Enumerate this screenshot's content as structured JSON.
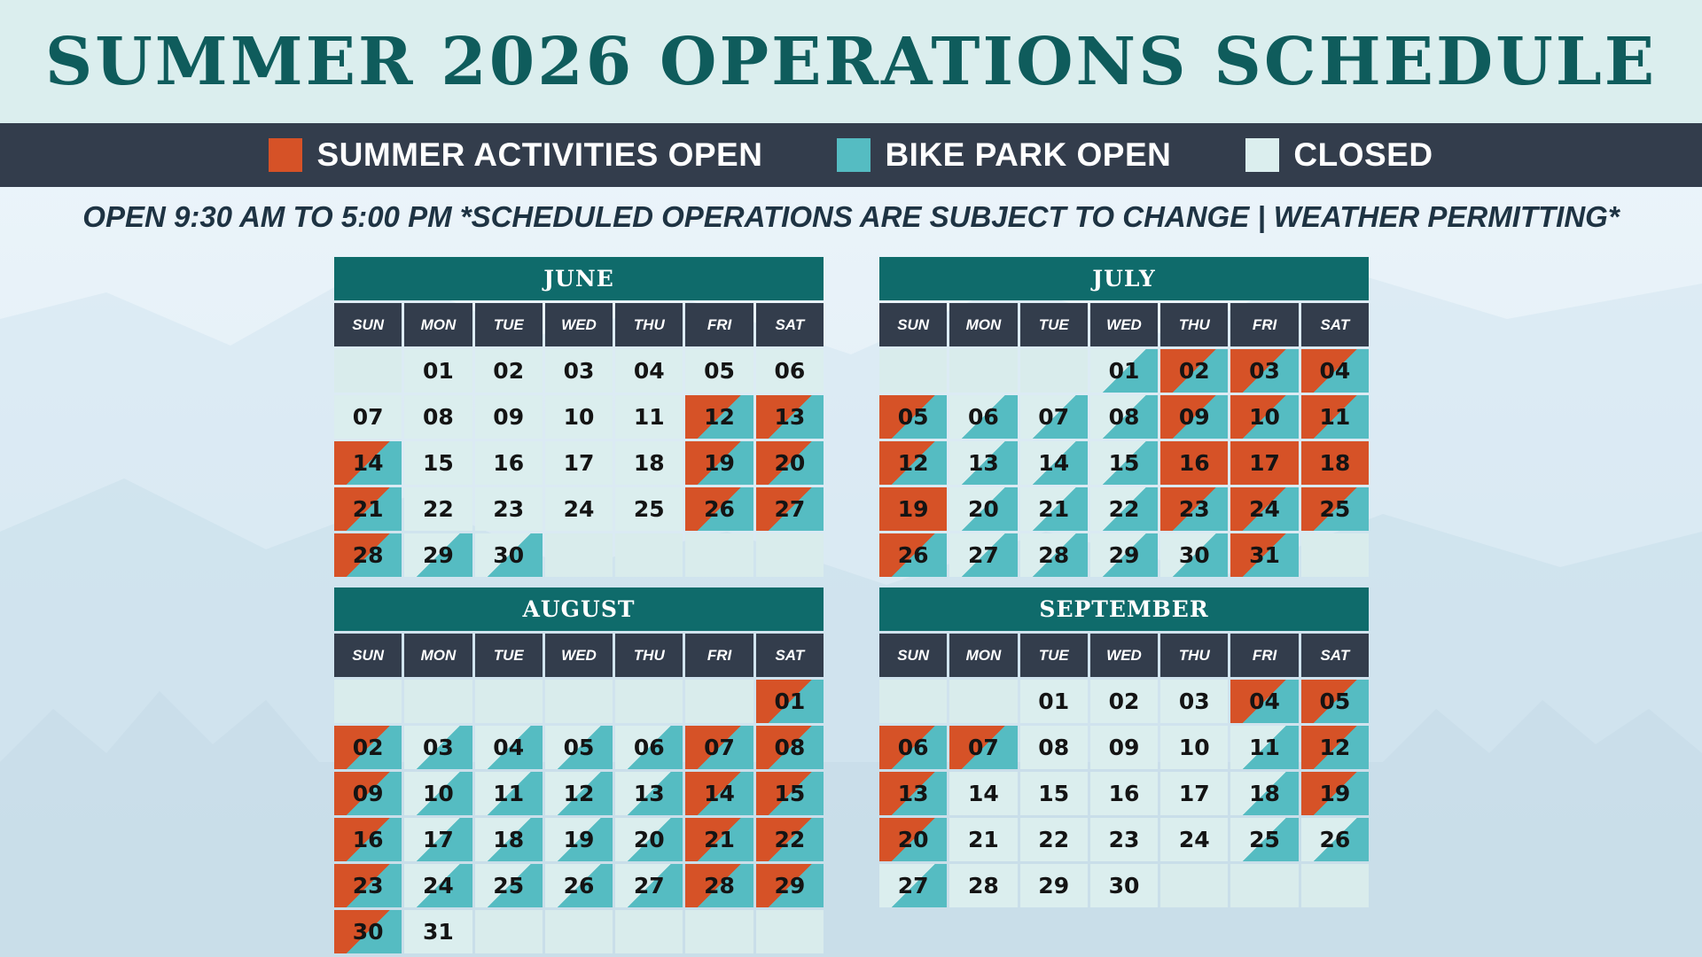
{
  "title": "SUMMER 2026 OPERATIONS SCHEDULE",
  "legend": [
    {
      "label": "SUMMER ACTIVITIES OPEN",
      "color": "#d65227"
    },
    {
      "label": "BIKE PARK OPEN",
      "color": "#55bcc2"
    },
    {
      "label": "CLOSED",
      "color": "#dbeeee"
    }
  ],
  "notice": "OPEN 9:30 AM TO 5:00 PM  *SCHEDULED OPERATIONS ARE SUBJECT TO CHANGE | WEATHER PERMITTING*",
  "weekdays": [
    "SUN",
    "MON",
    "TUE",
    "WED",
    "THU",
    "FRI",
    "SAT"
  ],
  "status_legend": {
    "closed": "closed",
    "bike": "bike park open only",
    "both": "summer activities and bike park open",
    "summer": "summer activities open only"
  },
  "months": [
    {
      "name": "JUNE",
      "start_weekday": 1,
      "days": [
        {
          "day": "01",
          "status": "closed"
        },
        {
          "day": "02",
          "status": "closed"
        },
        {
          "day": "03",
          "status": "closed"
        },
        {
          "day": "04",
          "status": "closed"
        },
        {
          "day": "05",
          "status": "closed"
        },
        {
          "day": "06",
          "status": "closed"
        },
        {
          "day": "07",
          "status": "closed"
        },
        {
          "day": "08",
          "status": "closed"
        },
        {
          "day": "09",
          "status": "closed"
        },
        {
          "day": "10",
          "status": "closed"
        },
        {
          "day": "11",
          "status": "closed"
        },
        {
          "day": "12",
          "status": "both"
        },
        {
          "day": "13",
          "status": "both"
        },
        {
          "day": "14",
          "status": "both"
        },
        {
          "day": "15",
          "status": "closed"
        },
        {
          "day": "16",
          "status": "closed"
        },
        {
          "day": "17",
          "status": "closed"
        },
        {
          "day": "18",
          "status": "closed"
        },
        {
          "day": "19",
          "status": "both"
        },
        {
          "day": "20",
          "status": "both"
        },
        {
          "day": "21",
          "status": "both"
        },
        {
          "day": "22",
          "status": "closed"
        },
        {
          "day": "23",
          "status": "closed"
        },
        {
          "day": "24",
          "status": "closed"
        },
        {
          "day": "25",
          "status": "closed"
        },
        {
          "day": "26",
          "status": "both"
        },
        {
          "day": "27",
          "status": "both"
        },
        {
          "day": "28",
          "status": "both"
        },
        {
          "day": "29",
          "status": "bike"
        },
        {
          "day": "30",
          "status": "bike"
        }
      ]
    },
    {
      "name": "JULY",
      "start_weekday": 3,
      "days": [
        {
          "day": "01",
          "status": "bike"
        },
        {
          "day": "02",
          "status": "both"
        },
        {
          "day": "03",
          "status": "both"
        },
        {
          "day": "04",
          "status": "both"
        },
        {
          "day": "05",
          "status": "both"
        },
        {
          "day": "06",
          "status": "bike"
        },
        {
          "day": "07",
          "status": "bike"
        },
        {
          "day": "08",
          "status": "bike"
        },
        {
          "day": "09",
          "status": "both"
        },
        {
          "day": "10",
          "status": "both"
        },
        {
          "day": "11",
          "status": "both"
        },
        {
          "day": "12",
          "status": "both"
        },
        {
          "day": "13",
          "status": "bike"
        },
        {
          "day": "14",
          "status": "bike"
        },
        {
          "day": "15",
          "status": "bike"
        },
        {
          "day": "16",
          "status": "summer"
        },
        {
          "day": "17",
          "status": "summer"
        },
        {
          "day": "18",
          "status": "summer"
        },
        {
          "day": "19",
          "status": "summer"
        },
        {
          "day": "20",
          "status": "bike"
        },
        {
          "day": "21",
          "status": "bike"
        },
        {
          "day": "22",
          "status": "bike"
        },
        {
          "day": "23",
          "status": "both"
        },
        {
          "day": "24",
          "status": "both"
        },
        {
          "day": "25",
          "status": "both"
        },
        {
          "day": "26",
          "status": "both"
        },
        {
          "day": "27",
          "status": "bike"
        },
        {
          "day": "28",
          "status": "bike"
        },
        {
          "day": "29",
          "status": "bike"
        },
        {
          "day": "30",
          "status": "bike"
        },
        {
          "day": "31",
          "status": "both"
        }
      ]
    },
    {
      "name": "AUGUST",
      "start_weekday": 6,
      "days": [
        {
          "day": "01",
          "status": "both"
        },
        {
          "day": "02",
          "status": "both"
        },
        {
          "day": "03",
          "status": "bike"
        },
        {
          "day": "04",
          "status": "bike"
        },
        {
          "day": "05",
          "status": "bike"
        },
        {
          "day": "06",
          "status": "bike"
        },
        {
          "day": "07",
          "status": "both"
        },
        {
          "day": "08",
          "status": "both"
        },
        {
          "day": "09",
          "status": "both"
        },
        {
          "day": "10",
          "status": "bike"
        },
        {
          "day": "11",
          "status": "bike"
        },
        {
          "day": "12",
          "status": "bike"
        },
        {
          "day": "13",
          "status": "bike"
        },
        {
          "day": "14",
          "status": "both"
        },
        {
          "day": "15",
          "status": "both"
        },
        {
          "day": "16",
          "status": "both"
        },
        {
          "day": "17",
          "status": "bike"
        },
        {
          "day": "18",
          "status": "bike"
        },
        {
          "day": "19",
          "status": "bike"
        },
        {
          "day": "20",
          "status": "bike"
        },
        {
          "day": "21",
          "status": "both"
        },
        {
          "day": "22",
          "status": "both"
        },
        {
          "day": "23",
          "status": "both"
        },
        {
          "day": "24",
          "status": "bike"
        },
        {
          "day": "25",
          "status": "bike"
        },
        {
          "day": "26",
          "status": "bike"
        },
        {
          "day": "27",
          "status": "bike"
        },
        {
          "day": "28",
          "status": "both"
        },
        {
          "day": "29",
          "status": "both"
        },
        {
          "day": "30",
          "status": "both"
        },
        {
          "day": "31",
          "status": "closed"
        }
      ]
    },
    {
      "name": "SEPTEMBER",
      "start_weekday": 2,
      "days": [
        {
          "day": "01",
          "status": "closed"
        },
        {
          "day": "02",
          "status": "closed"
        },
        {
          "day": "03",
          "status": "closed"
        },
        {
          "day": "04",
          "status": "both"
        },
        {
          "day": "05",
          "status": "both"
        },
        {
          "day": "06",
          "status": "both"
        },
        {
          "day": "07",
          "status": "both"
        },
        {
          "day": "08",
          "status": "closed"
        },
        {
          "day": "09",
          "status": "closed"
        },
        {
          "day": "10",
          "status": "closed"
        },
        {
          "day": "11",
          "status": "bike"
        },
        {
          "day": "12",
          "status": "both"
        },
        {
          "day": "13",
          "status": "both"
        },
        {
          "day": "14",
          "status": "closed"
        },
        {
          "day": "15",
          "status": "closed"
        },
        {
          "day": "16",
          "status": "closed"
        },
        {
          "day": "17",
          "status": "closed"
        },
        {
          "day": "18",
          "status": "bike"
        },
        {
          "day": "19",
          "status": "both"
        },
        {
          "day": "20",
          "status": "both"
        },
        {
          "day": "21",
          "status": "closed"
        },
        {
          "day": "22",
          "status": "closed"
        },
        {
          "day": "23",
          "status": "closed"
        },
        {
          "day": "24",
          "status": "closed"
        },
        {
          "day": "25",
          "status": "bike"
        },
        {
          "day": "26",
          "status": "bike"
        },
        {
          "day": "27",
          "status": "bike"
        },
        {
          "day": "28",
          "status": "closed"
        },
        {
          "day": "29",
          "status": "closed"
        },
        {
          "day": "30",
          "status": "closed"
        }
      ]
    }
  ]
}
